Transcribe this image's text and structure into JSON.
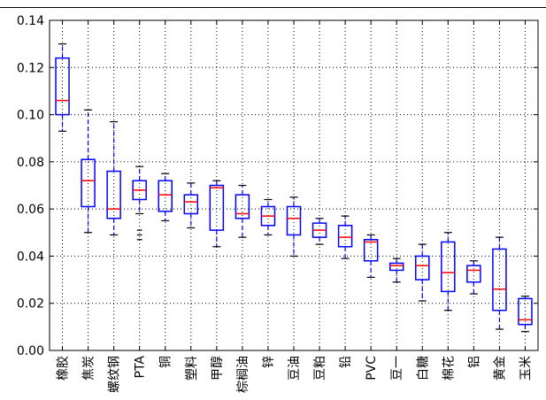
{
  "chart_data": {
    "type": "box",
    "title": "",
    "xlabel": "",
    "ylabel": "",
    "ylim": [
      0.0,
      0.14
    ],
    "yticks": [
      "0.00",
      "0.02",
      "0.04",
      "0.06",
      "0.08",
      "0.10",
      "0.12",
      "0.14"
    ],
    "grid": true,
    "colors": {
      "box": "#0000ff",
      "median": "#ff0000",
      "whisker": "#0000ff",
      "cap": "#000000",
      "grid": "#000000"
    },
    "categories": [
      "橡胶",
      "焦炭",
      "螺纹钢",
      "PTA",
      "铜",
      "塑料",
      "甲醇",
      "棕榈油",
      "锌",
      "豆油",
      "豆粕",
      "铅",
      "PVC",
      "豆一",
      "白糖",
      "棉花",
      "铝",
      "黄金",
      "玉米"
    ],
    "boxes": [
      {
        "q1": 0.1,
        "median": 0.106,
        "q3": 0.124,
        "whislo": 0.093,
        "whishi": 0.13,
        "fliers": []
      },
      {
        "q1": 0.061,
        "median": 0.072,
        "q3": 0.081,
        "whislo": 0.05,
        "whishi": 0.102,
        "fliers": []
      },
      {
        "q1": 0.056,
        "median": 0.06,
        "q3": 0.076,
        "whislo": 0.049,
        "whishi": 0.097,
        "fliers": []
      },
      {
        "q1": 0.064,
        "median": 0.068,
        "q3": 0.072,
        "whislo": 0.058,
        "whishi": 0.078,
        "fliers": [
          0.047,
          0.049,
          0.051
        ]
      },
      {
        "q1": 0.059,
        "median": 0.066,
        "q3": 0.072,
        "whislo": 0.055,
        "whishi": 0.075,
        "fliers": []
      },
      {
        "q1": 0.058,
        "median": 0.063,
        "q3": 0.066,
        "whislo": 0.052,
        "whishi": 0.071,
        "fliers": []
      },
      {
        "q1": 0.051,
        "median": 0.069,
        "q3": 0.07,
        "whislo": 0.044,
        "whishi": 0.072,
        "fliers": []
      },
      {
        "q1": 0.056,
        "median": 0.058,
        "q3": 0.066,
        "whislo": 0.048,
        "whishi": 0.07,
        "fliers": []
      },
      {
        "q1": 0.053,
        "median": 0.057,
        "q3": 0.061,
        "whislo": 0.049,
        "whishi": 0.064,
        "fliers": []
      },
      {
        "q1": 0.049,
        "median": 0.056,
        "q3": 0.061,
        "whislo": 0.04,
        "whishi": 0.065,
        "fliers": []
      },
      {
        "q1": 0.048,
        "median": 0.051,
        "q3": 0.054,
        "whislo": 0.045,
        "whishi": 0.056,
        "fliers": []
      },
      {
        "q1": 0.044,
        "median": 0.048,
        "q3": 0.053,
        "whislo": 0.039,
        "whishi": 0.057,
        "fliers": []
      },
      {
        "q1": 0.038,
        "median": 0.046,
        "q3": 0.047,
        "whislo": 0.031,
        "whishi": 0.049,
        "fliers": []
      },
      {
        "q1": 0.034,
        "median": 0.036,
        "q3": 0.037,
        "whislo": 0.029,
        "whishi": 0.039,
        "fliers": []
      },
      {
        "q1": 0.03,
        "median": 0.036,
        "q3": 0.04,
        "whislo": 0.021,
        "whishi": 0.045,
        "fliers": []
      },
      {
        "q1": 0.025,
        "median": 0.033,
        "q3": 0.046,
        "whislo": 0.017,
        "whishi": 0.05,
        "fliers": []
      },
      {
        "q1": 0.029,
        "median": 0.034,
        "q3": 0.036,
        "whislo": 0.024,
        "whishi": 0.038,
        "fliers": []
      },
      {
        "q1": 0.017,
        "median": 0.026,
        "q3": 0.043,
        "whislo": 0.009,
        "whishi": 0.048,
        "fliers": []
      },
      {
        "q1": 0.011,
        "median": 0.013,
        "q3": 0.022,
        "whislo": 0.008,
        "whishi": 0.023,
        "fliers": []
      }
    ]
  }
}
